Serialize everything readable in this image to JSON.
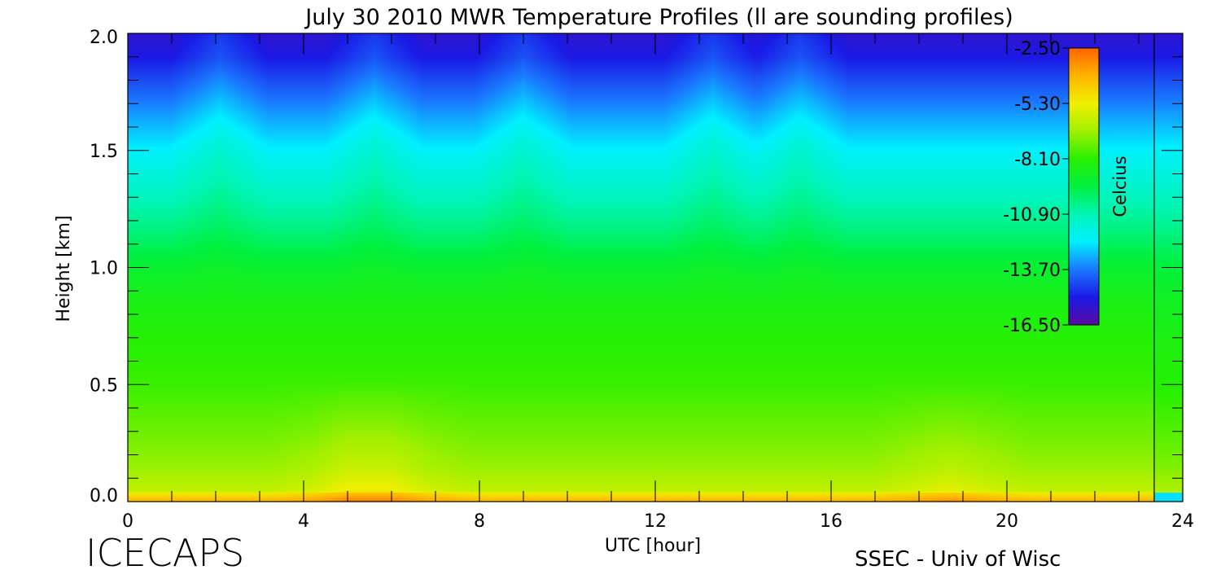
{
  "chart_data": {
    "type": "heatmap",
    "title": "July 30 2010 MWR Temperature Profiles (ll are sounding profiles)",
    "xlabel": "UTC [hour]",
    "ylabel": "Height [km]",
    "xlim": [
      0,
      24
    ],
    "ylim": [
      0,
      2.0
    ],
    "x_ticks": [
      0,
      4,
      8,
      12,
      16,
      20,
      24
    ],
    "x_tick_labels": [
      "0",
      "4",
      "8",
      "12",
      "16",
      "20",
      "24"
    ],
    "y_ticks": [
      0.0,
      0.5,
      1.0,
      1.5,
      2.0
    ],
    "y_tick_labels": [
      "0.0",
      "0.5",
      "1.0",
      "1.5",
      "2.0"
    ],
    "colorbar": {
      "label": "Celcius",
      "range": [
        -16.5,
        -2.5
      ],
      "ticks": [
        -2.5,
        -5.3,
        -8.1,
        -10.9,
        -13.7,
        -16.5
      ],
      "tick_labels": [
        "-2.50",
        "-5.30",
        "-8.10",
        "-10.90",
        "-13.70",
        "-16.50"
      ],
      "colormap": [
        "#5a0aa0",
        "#1a1ae6",
        "#1a78ff",
        "#00f0ff",
        "#00f5b4",
        "#00f040",
        "#28f000",
        "#a0f000",
        "#f0f000",
        "#ffb400",
        "#ff6400"
      ]
    },
    "heights_km": [
      0.0,
      0.05,
      0.15,
      0.3,
      0.5,
      0.7,
      0.9,
      1.0,
      1.2,
      1.35,
      1.5,
      1.65,
      1.8,
      1.9,
      2.0
    ],
    "base_profile_celsius": [
      -4.5,
      -6.2,
      -6.8,
      -7.3,
      -7.9,
      -8.2,
      -8.7,
      -9.1,
      -10.3,
      -11.1,
      -11.9,
      -12.9,
      -14.0,
      -14.8,
      -15.2
    ],
    "upper_level_peaks_utc": [
      2.1,
      5.6,
      9.0,
      13.3,
      15.3
    ],
    "boundary_layer_warm_utc": [
      5.0,
      6.0,
      18.7
    ],
    "sounding_profile_utc": 23.35
  },
  "footer": {
    "left_logo": "ICECAPS",
    "right_credit": "SSEC - Univ of Wisc"
  }
}
